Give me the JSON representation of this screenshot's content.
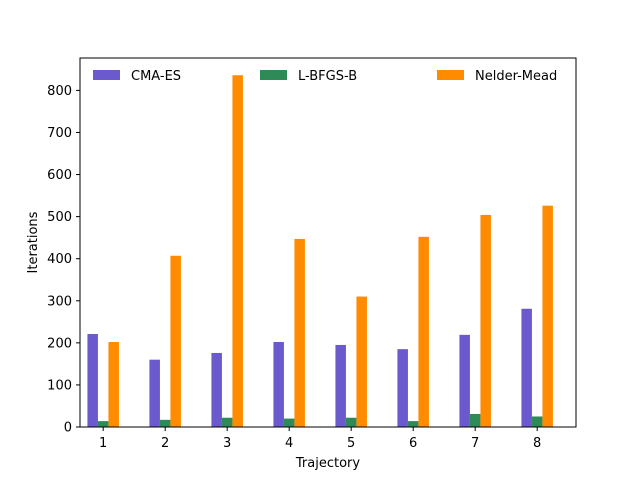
{
  "chart_data": {
    "type": "bar",
    "title": "",
    "xlabel": "Trajectory",
    "ylabel": "Iterations",
    "categories": [
      "1",
      "2",
      "3",
      "4",
      "5",
      "6",
      "7",
      "8"
    ],
    "ylim": [
      0,
      877
    ],
    "yticks": [
      0,
      100,
      200,
      300,
      400,
      500,
      600,
      700,
      800
    ],
    "grid": false,
    "legend_position": "top",
    "series": [
      {
        "name": "CMA-ES",
        "color": "#6a5acd",
        "values": [
          221,
          160,
          176,
          202,
          195,
          185,
          219,
          281
        ]
      },
      {
        "name": "L-BFGS-B",
        "color": "#2e8b57",
        "values": [
          14,
          17,
          22,
          20,
          22,
          14,
          31,
          25
        ]
      },
      {
        "name": "Nelder-Mead",
        "color": "#ff8c00",
        "values": [
          202,
          407,
          836,
          447,
          310,
          452,
          504,
          526
        ]
      }
    ]
  }
}
